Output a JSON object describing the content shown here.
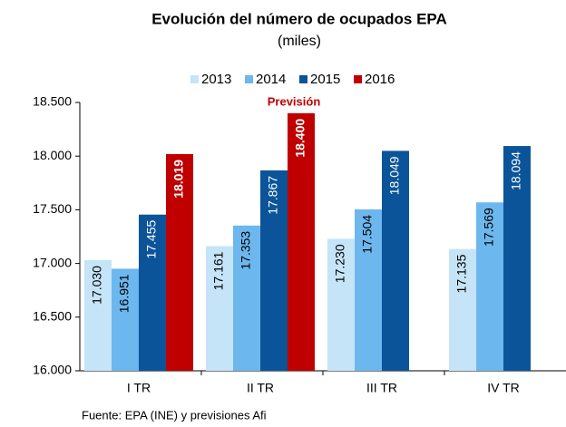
{
  "chart_data": {
    "type": "bar",
    "title": "Evolución del número de ocupados EPA",
    "subtitle": "(miles)",
    "annotation": "Previsión",
    "source": "Fuente: EPA (INE) y previsiones Afi",
    "categories": [
      "I TR",
      "II TR",
      "III TR",
      "IV TR"
    ],
    "series": [
      {
        "name": "2013",
        "color": "#c6e4f8",
        "values": [
          17030,
          17161,
          17230,
          17135
        ],
        "value_labels": [
          "17.030",
          "17.161",
          "17.230",
          "17.135"
        ]
      },
      {
        "name": "2014",
        "color": "#6db7ef",
        "values": [
          16951,
          17353,
          17504,
          17569
        ],
        "value_labels": [
          "16.951",
          "17.353",
          "17.504",
          "17.569"
        ]
      },
      {
        "name": "2015",
        "color": "#0b5499",
        "values": [
          17455,
          17867,
          18049,
          18094
        ],
        "value_labels": [
          "17.455",
          "17.867",
          "18.049",
          "18.094"
        ]
      },
      {
        "name": "2016",
        "color": "#c00000",
        "values": [
          18019,
          18400,
          null,
          null
        ],
        "value_labels": [
          "18.019",
          "18.400",
          null,
          null
        ]
      }
    ],
    "ylim": [
      16000,
      18500
    ],
    "yticks": [
      {
        "value": 16000,
        "label": "16.000"
      },
      {
        "value": 16500,
        "label": "16.500"
      },
      {
        "value": 17000,
        "label": "17.000"
      },
      {
        "value": 17500,
        "label": "17.500"
      },
      {
        "value": 18000,
        "label": "18.000"
      },
      {
        "value": 18500,
        "label": "18.500"
      }
    ],
    "grid": false
  }
}
